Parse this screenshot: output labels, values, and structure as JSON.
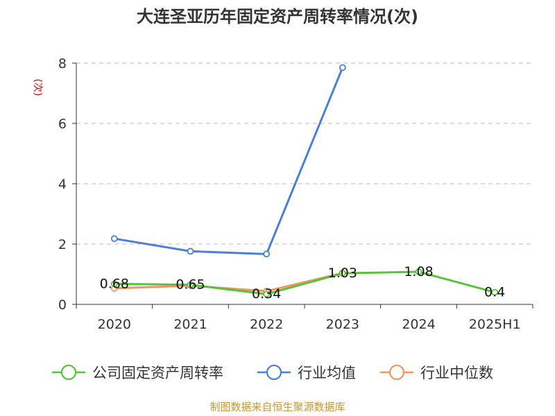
{
  "chart_data": {
    "type": "line",
    "title": "大连圣亚历年固定资产周转率情况(次)",
    "ylabel": "(次)",
    "xlabel": "",
    "categories": [
      "2020",
      "2021",
      "2022",
      "2023",
      "2024",
      "2025H1"
    ],
    "ylim": [
      0,
      8
    ],
    "yticks": [
      0,
      2,
      4,
      6,
      8
    ],
    "grid": true,
    "legend_position": "bottom",
    "series": [
      {
        "name": "公司固定资产周转率",
        "color": "#5ac238",
        "values": [
          0.68,
          0.65,
          0.34,
          1.03,
          1.08,
          0.4
        ],
        "labels": [
          "0.68",
          "0.65",
          "0.34",
          "1.03",
          "1.08",
          "0.4"
        ]
      },
      {
        "name": "行业均值",
        "color": "#4a7fd8",
        "values": [
          2.18,
          1.76,
          1.67,
          7.85,
          null,
          null
        ]
      },
      {
        "name": "行业中位数",
        "color": "#f19662",
        "values": [
          0.53,
          0.62,
          0.44,
          1.04,
          null,
          null
        ]
      }
    ]
  },
  "source_note": "制图数据来自恒生聚源数据库"
}
